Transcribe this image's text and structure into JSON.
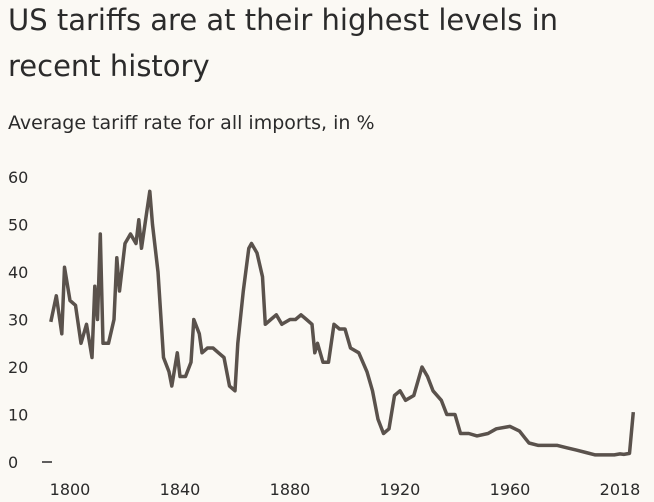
{
  "chart_data": {
    "type": "line",
    "title": "US tariffs are at their highest levels in recent history",
    "subtitle": "Average tariff rate for all imports, in %",
    "ylim": [
      0,
      60
    ],
    "yticks": [
      0,
      10,
      20,
      30,
      40,
      50,
      60
    ],
    "xticks": [
      1800,
      1840,
      1880,
      1920,
      1960,
      2018
    ],
    "color": "#5a524c",
    "x": [
      1793,
      1795,
      1797,
      1798,
      1800,
      1802,
      1804,
      1806,
      1808,
      1809,
      1810,
      1811,
      1812,
      1814,
      1816,
      1817,
      1818,
      1820,
      1822,
      1824,
      1825,
      1826,
      1828,
      1829,
      1830,
      1832,
      1834,
      1836,
      1837,
      1839,
      1840,
      1842,
      1844,
      1845,
      1847,
      1848,
      1850,
      1852,
      1854,
      1856,
      1858,
      1860,
      1861,
      1863,
      1865,
      1866,
      1868,
      1870,
      1871,
      1873,
      1875,
      1877,
      1880,
      1882,
      1884,
      1886,
      1888,
      1889,
      1890,
      1892,
      1894,
      1896,
      1898,
      1900,
      1902,
      1905,
      1908,
      1910,
      1912,
      1914,
      1916,
      1918,
      1920,
      1922,
      1925,
      1928,
      1930,
      1932,
      1935,
      1937,
      1940,
      1942,
      1945,
      1948,
      1952,
      1955,
      1960,
      1965,
      1968,
      1970,
      1975,
      1980,
      1985,
      1990,
      1995,
      2000,
      2005,
      2010,
      2015,
      2018,
      2020,
      2023,
      2025
    ],
    "values": [
      29.5,
      35,
      27,
      41,
      34,
      33,
      25,
      29,
      22,
      37,
      30,
      48,
      25,
      25,
      30,
      43,
      36,
      46,
      48,
      46,
      51,
      45,
      53,
      57,
      50,
      40,
      22,
      19,
      16,
      23,
      18,
      18,
      21,
      30,
      27,
      23,
      24,
      24,
      23,
      22,
      16,
      15,
      25,
      36,
      45,
      46,
      44,
      39,
      29,
      30,
      31,
      29,
      30,
      30,
      31,
      30,
      29,
      23,
      25,
      21,
      21,
      29,
      28,
      28,
      24,
      23,
      19,
      15,
      9,
      6,
      7,
      14,
      15,
      13,
      14,
      20,
      18,
      15,
      13,
      10,
      10,
      6,
      6,
      5.5,
      6,
      7,
      7.5,
      6.5,
      5,
      4,
      3.5,
      3.5,
      3.5,
      3,
      2.5,
      2,
      1.5,
      1.5,
      1.5,
      1.7,
      1.6,
      1.8,
      10.5
    ]
  }
}
